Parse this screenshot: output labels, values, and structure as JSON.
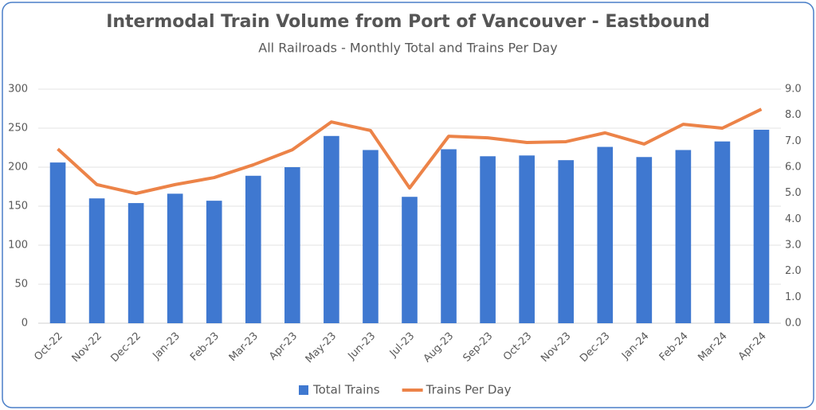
{
  "chart_data": {
    "type": "bar",
    "title": "Intermodal Train Volume from Port of Vancouver - Eastbound",
    "subtitle": "All Railroads - Monthly Total and Trains Per Day",
    "categories": [
      "Oct-22",
      "Nov-22",
      "Dec-22",
      "Jan-23",
      "Feb-23",
      "Mar-23",
      "Apr-23",
      "May-23",
      "Jun-23",
      "Jul-23",
      "Aug-23",
      "Sep-23",
      "Oct-23",
      "Nov-23",
      "Dec-23",
      "Jan-24",
      "Feb-24",
      "Mar-24",
      "Apr-24"
    ],
    "series": [
      {
        "name": "Total Trains",
        "type": "bar",
        "color": "#3f78d0",
        "values": [
          206,
          160,
          154,
          166,
          157,
          189,
          200,
          240,
          222,
          162,
          223,
          214,
          215,
          209,
          226,
          213,
          222,
          233,
          248
        ]
      },
      {
        "name": "Trains Per Day",
        "type": "line",
        "axis": "y2",
        "color": "#ec8348",
        "values": [
          6.7,
          5.33,
          4.99,
          5.33,
          5.6,
          6.09,
          6.67,
          7.74,
          7.41,
          5.2,
          7.19,
          7.13,
          6.95,
          6.98,
          7.32,
          6.89,
          7.65,
          7.5,
          8.23
        ]
      }
    ],
    "ylim": [
      0,
      300
    ],
    "yticks": [
      0,
      50,
      100,
      150,
      200,
      250,
      300
    ],
    "y2lim": [
      0,
      9
    ],
    "y2ticks": [
      {
        "value": 0,
        "label": "0.0"
      },
      {
        "value": 1,
        "label": "1.0"
      },
      {
        "value": 2,
        "label": "2.0"
      },
      {
        "value": 3,
        "label": "3.0"
      },
      {
        "value": 4,
        "label": "4.0"
      },
      {
        "value": 5,
        "label": "5.0"
      },
      {
        "value": 6,
        "label": "6.0"
      },
      {
        "value": 7,
        "label": "7.0"
      },
      {
        "value": 8,
        "label": "8.0"
      },
      {
        "value": 9,
        "label": "9.0"
      }
    ],
    "grid": true,
    "legend": "bottom"
  }
}
